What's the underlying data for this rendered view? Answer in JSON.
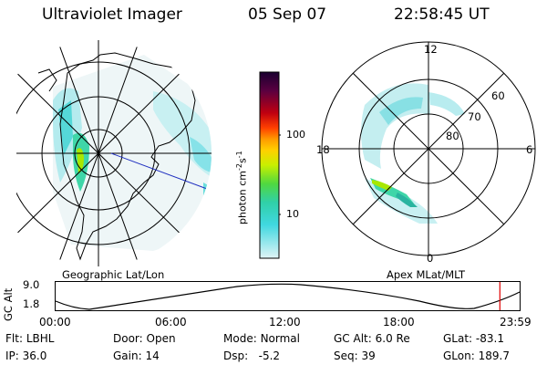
{
  "header": {
    "title": "Ultraviolet Imager",
    "date": "05 Sep 07",
    "time": "22:58:45 UT"
  },
  "left_panel": {
    "caption": "Geographic Lat/Lon"
  },
  "right_panel": {
    "caption": "Apex MLat/MLT",
    "mlt_labels": {
      "top": "12",
      "left": "18",
      "right": "6",
      "bottom": "0"
    },
    "mlat_labels": [
      "60",
      "70",
      "80"
    ]
  },
  "colorbar": {
    "unit_label": "photon cm",
    "unit_exp1": "-2",
    "unit_mid": "s",
    "unit_exp2": "-1",
    "ticks": [
      "100",
      "10"
    ],
    "colors": [
      "#1a0030",
      "#3a0040",
      "#6a0030",
      "#a00010",
      "#d80000",
      "#ff4000",
      "#ff9a00",
      "#ffd000",
      "#d8f000",
      "#9ae600",
      "#40d840",
      "#20d8a0",
      "#30d0d8",
      "#70e0e8",
      "#b0eef0",
      "#d8f4f6"
    ]
  },
  "altitude_plot": {
    "ylabel": "GC Alt",
    "ymax": "9.0",
    "ymin": "1.8",
    "xticks": [
      "00:00",
      "06:00",
      "12:00",
      "18:00",
      "23:59"
    ],
    "current_marker_fraction": 0.9574
  },
  "info": {
    "flt_label": "Flt:",
    "flt_value": "LBHL",
    "door_label": "Door:",
    "door_value": "Open",
    "mode_label": "Mode:",
    "mode_value": "Normal",
    "gcalt_label": "GC Alt:",
    "gcalt_value": "6.0 Re",
    "glat_label": "GLat:",
    "glat_value": "-83.1",
    "ip_label": "IP:",
    "ip_value": "36.0",
    "gain_label": "Gain:",
    "gain_value": "14",
    "dsp_label": "Dsp:",
    "dsp_value": "-5.2",
    "seq_label": "Seq:",
    "seq_value": "39",
    "glon_label": "GLon:",
    "glon_value": "189.7"
  }
}
